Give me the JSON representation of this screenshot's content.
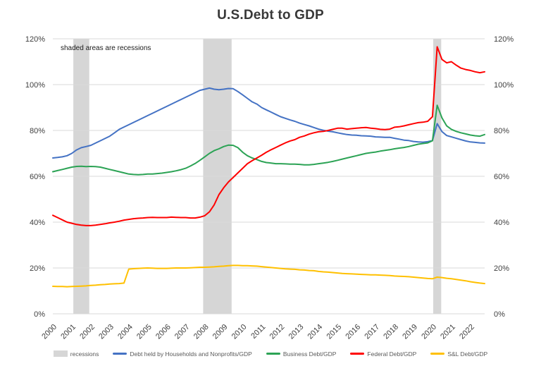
{
  "chart_data": {
    "type": "line",
    "title": "U.S.Debt to GDP",
    "annotation": "shaded areas are recessions",
    "x_start": 2000,
    "x_end": 2022.75,
    "x_step": 0.25,
    "x_ticks": [
      2000,
      2001,
      2002,
      2003,
      2004,
      2005,
      2006,
      2007,
      2008,
      2009,
      2010,
      2011,
      2012,
      2013,
      2014,
      2015,
      2016,
      2017,
      2018,
      2019,
      2020,
      2021,
      2022
    ],
    "ylim": [
      0,
      120
    ],
    "y_ticks": [
      0,
      20,
      40,
      60,
      80,
      100,
      120
    ],
    "y_tick_suffix": "%",
    "grid_color": "#d9d9d9",
    "legend_position": "bottom",
    "recessions": {
      "label": "recessions",
      "color": "#d6d6d6",
      "bands": [
        [
          2001.08,
          2001.92
        ],
        [
          2007.92,
          2009.42
        ],
        [
          2020.04,
          2020.46
        ]
      ]
    },
    "series": [
      {
        "name": "Debt held by Households and Nonprofits/GDP",
        "color": "#4472c4",
        "values": [
          68,
          68.2,
          68.5,
          69,
          70,
          71.5,
          72.5,
          73,
          73.5,
          74.5,
          75.5,
          76.5,
          77.5,
          79,
          80.5,
          81.5,
          82.5,
          83.5,
          84.5,
          85.5,
          86.5,
          87.5,
          88.5,
          89.5,
          90.5,
          91.5,
          92.5,
          93.5,
          94.5,
          95.5,
          96.5,
          97.5,
          98,
          98.5,
          98,
          97.8,
          98,
          98.3,
          98.2,
          97,
          95.5,
          94,
          92.5,
          91.5,
          90,
          89,
          88,
          87,
          86,
          85.3,
          84.6,
          84,
          83.2,
          82.6,
          82,
          81.3,
          80.6,
          80.1,
          79.7,
          79.4,
          79,
          78.6,
          78.2,
          78,
          77.9,
          77.7,
          77.6,
          77.5,
          77.2,
          77.1,
          77,
          77,
          76.6,
          76.2,
          75.8,
          75.6,
          75.2,
          75,
          74.9,
          75.1,
          75.6,
          83,
          79.5,
          77.8,
          77.2,
          76.6,
          76,
          75.4,
          75,
          74.8,
          74.6,
          74.5
        ]
      },
      {
        "name": "Business Debt/GDP",
        "color": "#2ca355",
        "values": [
          62,
          62.5,
          63,
          63.5,
          64,
          64.3,
          64.4,
          64.2,
          64.3,
          64.2,
          64,
          63.5,
          63,
          62.5,
          62,
          61.5,
          61,
          60.8,
          60.7,
          60.8,
          61,
          61,
          61.2,
          61.4,
          61.7,
          62,
          62.4,
          62.9,
          63.5,
          64.5,
          65.6,
          67,
          68.5,
          70,
          71.2,
          72,
          73,
          73.6,
          73.5,
          72.5,
          70.5,
          69,
          68,
          67.3,
          66.5,
          66,
          65.8,
          65.5,
          65.5,
          65.4,
          65.3,
          65.3,
          65.2,
          65,
          65,
          65.2,
          65.5,
          65.8,
          66.1,
          66.5,
          67,
          67.5,
          68,
          68.5,
          69,
          69.5,
          70,
          70.3,
          70.6,
          71,
          71.3,
          71.6,
          72,
          72.3,
          72.6,
          73,
          73.5,
          74,
          74.3,
          74.6,
          75.5,
          91,
          85.5,
          82,
          80.5,
          79.6,
          79,
          78.5,
          78,
          77.7,
          77.5,
          78.2
        ]
      },
      {
        "name": "Federal Debt/GDP",
        "color": "#ff0000",
        "values": [
          43,
          42,
          41,
          40,
          39.5,
          39,
          38.7,
          38.5,
          38.5,
          38.7,
          39,
          39.3,
          39.7,
          40,
          40.4,
          40.9,
          41.2,
          41.5,
          41.7,
          41.8,
          42,
          42.1,
          42,
          42,
          42,
          42.2,
          42.1,
          42,
          42,
          41.8,
          41.8,
          42.2,
          42.8,
          44.5,
          47.5,
          52,
          55,
          57.5,
          59.5,
          61.5,
          63.5,
          65.5,
          66.8,
          68,
          69.2,
          70.5,
          71.6,
          72.6,
          73.6,
          74.6,
          75.4,
          76,
          77,
          77.6,
          78.4,
          79,
          79.4,
          79.6,
          80,
          80.5,
          81,
          81,
          80.6,
          80.8,
          81,
          81.2,
          81.3,
          81,
          80.8,
          80.5,
          80.4,
          80.6,
          81.4,
          81.6,
          82,
          82.5,
          83,
          83.4,
          83.6,
          84,
          86,
          116.5,
          111,
          109.5,
          110,
          108.5,
          107.2,
          106.6,
          106.2,
          105.6,
          105.2,
          105.6
        ]
      },
      {
        "name": "S&L Debt/GDP",
        "color": "#ffc000",
        "values": [
          12,
          11.9,
          11.9,
          11.8,
          11.9,
          12,
          12.1,
          12.2,
          12.4,
          12.5,
          12.7,
          12.8,
          13,
          13.1,
          13.2,
          13.4,
          19.5,
          19.7,
          19.8,
          19.9,
          20,
          19.9,
          19.8,
          19.8,
          19.8,
          19.9,
          20,
          20,
          20,
          20.1,
          20.2,
          20.3,
          20.3,
          20.4,
          20.5,
          20.7,
          20.8,
          21,
          21.1,
          21.1,
          21,
          21,
          20.9,
          20.8,
          20.6,
          20.4,
          20.2,
          20,
          19.8,
          19.6,
          19.5,
          19.4,
          19.2,
          19.1,
          18.9,
          18.8,
          18.5,
          18.3,
          18.2,
          18,
          17.8,
          17.6,
          17.5,
          17.4,
          17.3,
          17.2,
          17.1,
          17,
          17,
          16.9,
          16.8,
          16.7,
          16.5,
          16.4,
          16.3,
          16.2,
          16,
          15.8,
          15.6,
          15.4,
          15.3,
          16,
          15.8,
          15.5,
          15.3,
          15,
          14.7,
          14.4,
          14,
          13.7,
          13.4,
          13.2
        ]
      }
    ]
  }
}
